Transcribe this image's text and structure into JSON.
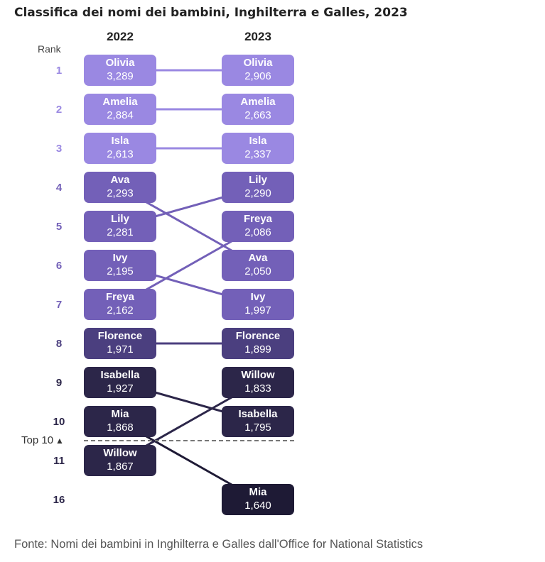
{
  "title": "Classifica dei nomi dei bambini, Inghilterra e Galles, 2023",
  "rank_header": "Rank",
  "top10_label": "Top 10",
  "top10_icon": "triangle-up-icon",
  "source": "Fonte: Nomi dei bambini in Inghilterra e Galles dall'Office for National Statistics",
  "colors": {
    "rank_1_3": "#9a88e2",
    "rank_4_7": "#7360b8",
    "rank_8": "#4b3f7f",
    "rank_9_11": "#2c2649",
    "rank_16": "#1e1a35"
  },
  "chart_data": {
    "type": "slope",
    "columns": [
      "2022",
      "2023"
    ],
    "ranks": [
      "1",
      "2",
      "3",
      "4",
      "5",
      "6",
      "7",
      "8",
      "9",
      "10",
      "11",
      "16"
    ],
    "names_2022": [
      {
        "name": "Olivia",
        "rank": 1,
        "count": "3,289"
      },
      {
        "name": "Amelia",
        "rank": 2,
        "count": "2,884"
      },
      {
        "name": "Isla",
        "rank": 3,
        "count": "2,613"
      },
      {
        "name": "Ava",
        "rank": 4,
        "count": "2,293"
      },
      {
        "name": "Lily",
        "rank": 5,
        "count": "2,281"
      },
      {
        "name": "Ivy",
        "rank": 6,
        "count": "2,195"
      },
      {
        "name": "Freya",
        "rank": 7,
        "count": "2,162"
      },
      {
        "name": "Florence",
        "rank": 8,
        "count": "1,971"
      },
      {
        "name": "Isabella",
        "rank": 9,
        "count": "1,927"
      },
      {
        "name": "Mia",
        "rank": 10,
        "count": "1,868"
      },
      {
        "name": "Willow",
        "rank": 11,
        "count": "1,867"
      }
    ],
    "names_2023": [
      {
        "name": "Olivia",
        "rank": 1,
        "count": "2,906"
      },
      {
        "name": "Amelia",
        "rank": 2,
        "count": "2,663"
      },
      {
        "name": "Isla",
        "rank": 3,
        "count": "2,337"
      },
      {
        "name": "Lily",
        "rank": 4,
        "count": "2,290"
      },
      {
        "name": "Freya",
        "rank": 5,
        "count": "2,086"
      },
      {
        "name": "Ava",
        "rank": 6,
        "count": "2,050"
      },
      {
        "name": "Ivy",
        "rank": 7,
        "count": "1,997"
      },
      {
        "name": "Florence",
        "rank": 8,
        "count": "1,899"
      },
      {
        "name": "Willow",
        "rank": 9,
        "count": "1,833"
      },
      {
        "name": "Isabella",
        "rank": 10,
        "count": "1,795"
      },
      {
        "name": "Mia",
        "rank": 16,
        "count": "1,640"
      }
    ],
    "top_n_cutoff": 10
  }
}
